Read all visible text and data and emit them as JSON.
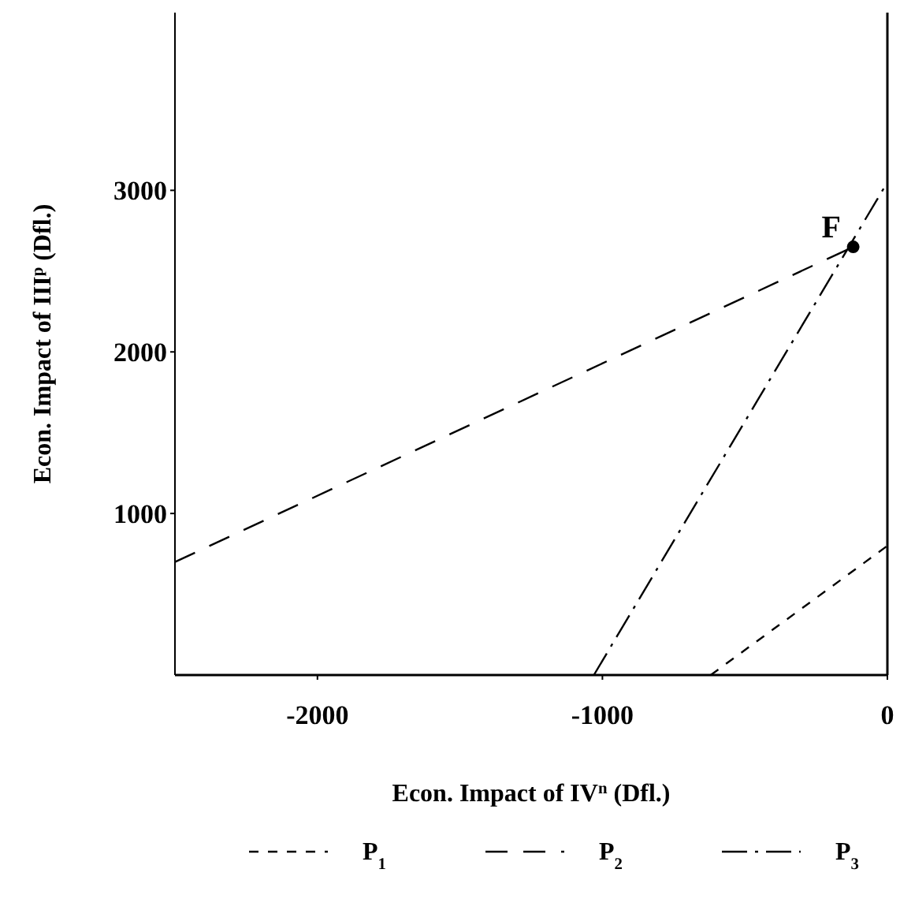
{
  "chart_data": {
    "type": "line",
    "xlabel": "Econ. Impact of IV$^{n}$ (Dfl.)",
    "ylabel": "Econ. Impact of III$^{p}$ (Dfl.)",
    "xlim": [
      -2500,
      0
    ],
    "ylim": [
      0,
      4100
    ],
    "xticks": [
      -2000,
      -1000,
      0
    ],
    "yticks": [
      1000,
      2000,
      3000
    ],
    "series": [
      {
        "name": "P$_{1}$",
        "color": "#000000",
        "x": [
          -620,
          0
        ],
        "values": [
          0,
          800
        ],
        "line_style": "dotted"
      },
      {
        "name": "P$_{2}$",
        "color": "#000000",
        "x": [
          -2500,
          -120
        ],
        "values": [
          700,
          2650
        ],
        "line_style": "dashed"
      },
      {
        "name": "P$_{3}$",
        "color": "#000000",
        "x": [
          -1030,
          0
        ],
        "values": [
          0,
          3050
        ],
        "line_style": "dashdot"
      },
      {
        "type": "scatter",
        "color": "#000000",
        "x": [
          -120
        ],
        "values": [
          2650
        ],
        "marker": "circle"
      }
    ],
    "annotations": [
      {
        "text": "F",
        "x": -120,
        "y": 2650
      }
    ],
    "ref_lines": [
      {
        "axis": "x",
        "value": 0,
        "color": "#000000"
      }
    ],
    "grid": false,
    "legend": "bottom",
    "marker": "none"
  }
}
